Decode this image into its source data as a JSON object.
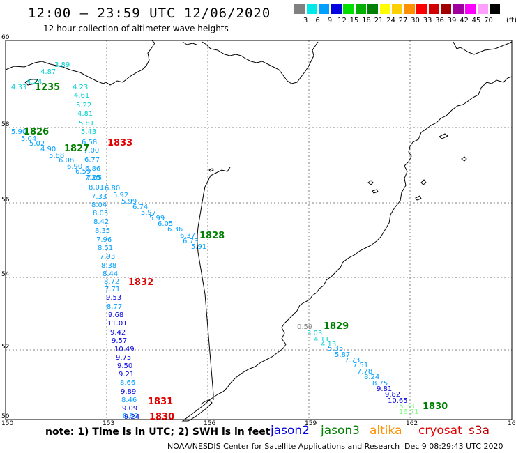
{
  "header": {
    "title": "12:00 – 23:59 UTC 12/06/2020",
    "subtitle": "12 hour collection of altimeter wave heights"
  },
  "scale": {
    "unit": "(ft)",
    "bins": [
      {
        "label": "3",
        "color": "#808080"
      },
      {
        "label": "6",
        "color": "#00e8e8"
      },
      {
        "label": "9",
        "color": "#00a0ff"
      },
      {
        "label": "12",
        "color": "#0000e0"
      },
      {
        "label": "15",
        "color": "#00e000"
      },
      {
        "label": "18",
        "color": "#00b000"
      },
      {
        "label": "21",
        "color": "#008000"
      },
      {
        "label": "24",
        "color": "#ffff00"
      },
      {
        "label": "27",
        "color": "#ffd000"
      },
      {
        "label": "30",
        "color": "#ff9000"
      },
      {
        "label": "33",
        "color": "#ff0000"
      },
      {
        "label": "36",
        "color": "#d00000"
      },
      {
        "label": "39",
        "color": "#a00000"
      },
      {
        "label": "42",
        "color": "#a000a0"
      },
      {
        "label": "45",
        "color": "#ff00ff"
      },
      {
        "label": "70",
        "color": "#ffa0ff"
      },
      {
        "label": "",
        "color": "#000000"
      }
    ]
  },
  "map": {
    "lat_ticks": [
      "60",
      "58",
      "56",
      "54",
      "52",
      "50"
    ],
    "lon_ticks": [
      "150",
      "153",
      "156",
      "159",
      "162",
      "165"
    ],
    "passes": [
      {
        "name": "time-1826",
        "text": "1826",
        "color": "#008000",
        "sat": "jason3"
      },
      {
        "name": "time-1827",
        "text": "1827",
        "color": "#008000",
        "sat": "jason3"
      },
      {
        "name": "time-1828",
        "text": "1828",
        "color": "#008000",
        "sat": "jason3"
      },
      {
        "name": "time-1829",
        "text": "1829",
        "color": "#008000",
        "sat": "jason3"
      },
      {
        "name": "time-1830-green",
        "text": "1830",
        "color": "#008000",
        "sat": "jason3"
      },
      {
        "name": "time-1235",
        "text": "1235",
        "color": "#008000",
        "sat": "jason3"
      },
      {
        "name": "time-1833",
        "text": "1833",
        "color": "#e00000",
        "sat": "cryosat"
      },
      {
        "name": "time-1832",
        "text": "1832",
        "color": "#e00000",
        "sat": "cryosat"
      },
      {
        "name": "time-1831",
        "text": "1831",
        "color": "#e00000",
        "sat": "cryosat"
      },
      {
        "name": "time-1830-red",
        "text": "1830",
        "color": "#e00000",
        "sat": "cryosat"
      }
    ],
    "track_north": [
      {
        "t": "3.89",
        "c": "#00d0d0"
      },
      {
        "t": "4.87",
        "c": "#00d0d0"
      },
      {
        "t": "4.33",
        "c": "#00d0d0"
      },
      {
        "t": "4.24",
        "c": "#00d0d0"
      }
    ],
    "track_west": [
      {
        "t": "4.23",
        "c": "#00d0d0"
      },
      {
        "t": "4.61",
        "c": "#00d0d0"
      },
      {
        "t": "5.22",
        "c": "#00d0d0"
      },
      {
        "t": "4.81",
        "c": "#00d0d0"
      },
      {
        "t": "5.81",
        "c": "#00d0d0"
      },
      {
        "t": "5.43",
        "c": "#00d0d0"
      },
      {
        "t": "6.58",
        "c": "#00a0ff"
      },
      {
        "t": "7.00",
        "c": "#00a0ff"
      },
      {
        "t": "6.77",
        "c": "#00a0ff"
      },
      {
        "t": "6.86",
        "c": "#00a0ff"
      },
      {
        "t": "7.05",
        "c": "#00a0ff"
      },
      {
        "t": "8.01",
        "c": "#00a0ff"
      },
      {
        "t": "7.33",
        "c": "#00a0ff"
      },
      {
        "t": "8.04",
        "c": "#00a0ff"
      },
      {
        "t": "8.05",
        "c": "#00a0ff"
      },
      {
        "t": "8.42",
        "c": "#00a0ff"
      },
      {
        "t": "8.35",
        "c": "#00a0ff"
      },
      {
        "t": "7.96",
        "c": "#00a0ff"
      },
      {
        "t": "8.51",
        "c": "#00a0ff"
      },
      {
        "t": "7.93",
        "c": "#00a0ff"
      },
      {
        "t": "8.38",
        "c": "#00a0ff"
      },
      {
        "t": "8.44",
        "c": "#00a0ff"
      },
      {
        "t": "8.72",
        "c": "#00a0ff"
      },
      {
        "t": "7.71",
        "c": "#00a0ff"
      },
      {
        "t": "9.53",
        "c": "#0000e0"
      },
      {
        "t": "8.77",
        "c": "#00a0ff"
      },
      {
        "t": "9.68",
        "c": "#0000e0"
      },
      {
        "t": "11.01",
        "c": "#0000e0"
      },
      {
        "t": "9.42",
        "c": "#0000e0"
      },
      {
        "t": "9.57",
        "c": "#0000e0"
      },
      {
        "t": "10.49",
        "c": "#0000e0"
      },
      {
        "t": "9.75",
        "c": "#0000e0"
      },
      {
        "t": "9.50",
        "c": "#0000e0"
      },
      {
        "t": "9.21",
        "c": "#0000e0"
      },
      {
        "t": "8.66",
        "c": "#00a0ff"
      },
      {
        "t": "9.89",
        "c": "#0000e0"
      },
      {
        "t": "8.46",
        "c": "#00a0ff"
      },
      {
        "t": "9.09",
        "c": "#0000e0"
      },
      {
        "t": "8.80",
        "c": "#00a0ff"
      },
      {
        "t": "9.24",
        "c": "#0000e0"
      }
    ],
    "track_diag": [
      {
        "t": "5.90",
        "c": "#00a0ff"
      },
      {
        "t": "5.04",
        "c": "#00a0ff"
      },
      {
        "t": "5.02",
        "c": "#00a0ff"
      },
      {
        "t": "4.90",
        "c": "#00a0ff"
      },
      {
        "t": "5.88",
        "c": "#00a0ff"
      },
      {
        "t": "6.08",
        "c": "#00a0ff"
      },
      {
        "t": "6.90",
        "c": "#00a0ff"
      },
      {
        "t": "6.59",
        "c": "#00a0ff"
      },
      {
        "t": "7.25",
        "c": "#00a0ff"
      },
      {
        "t": "6.80",
        "c": "#00a0ff"
      },
      {
        "t": "5.92",
        "c": "#00a0ff"
      },
      {
        "t": "5.99",
        "c": "#00a0ff"
      },
      {
        "t": "6.74",
        "c": "#00a0ff"
      },
      {
        "t": "5.97",
        "c": "#00a0ff"
      },
      {
        "t": "5.99",
        "c": "#00a0ff"
      },
      {
        "t": "6.05",
        "c": "#00a0ff"
      },
      {
        "t": "6.36",
        "c": "#00a0ff"
      },
      {
        "t": "6.37",
        "c": "#00a0ff"
      },
      {
        "t": "6.73",
        "c": "#00a0ff"
      },
      {
        "t": "5.91",
        "c": "#00a0ff"
      }
    ],
    "track_east": [
      {
        "t": "0.59",
        "c": "#808080"
      },
      {
        "t": "3.03",
        "c": "#00d0d0"
      },
      {
        "t": "4.11",
        "c": "#00d0d0"
      },
      {
        "t": "4.13",
        "c": "#00d0d0"
      },
      {
        "t": "5.35",
        "c": "#00a0ff"
      },
      {
        "t": "5.87",
        "c": "#00a0ff"
      },
      {
        "t": "7.73",
        "c": "#00a0ff"
      },
      {
        "t": "7.51",
        "c": "#00a0ff"
      },
      {
        "t": "7.78",
        "c": "#00a0ff"
      },
      {
        "t": "8.24",
        "c": "#00a0ff"
      },
      {
        "t": "8.75",
        "c": "#00a0ff"
      },
      {
        "t": "9.81",
        "c": "#0000e0"
      },
      {
        "t": "9.82",
        "c": "#0000e0"
      },
      {
        "t": "10.65",
        "c": "#0000e0"
      },
      {
        "t": "15.38",
        "c": "#80ff80"
      },
      {
        "t": "16.71",
        "c": "#80ff80"
      }
    ]
  },
  "footer": {
    "note": "note:  1) Time is in UTC;  2) SWH is in feet",
    "legend": [
      {
        "label": "jason2",
        "color": "#0000e0"
      },
      {
        "label": "jason3",
        "color": "#008000"
      },
      {
        "label": "altika",
        "color": "#ff9000"
      },
      {
        "label": "cryosat",
        "color": "#e00000"
      },
      {
        "label": "s3a",
        "color": "#c00000"
      }
    ],
    "credit": "NOAA/NESDIS Center for Satellite Applications and Research",
    "timestamp": "Dec  9 08:29:43 UTC 2020"
  }
}
